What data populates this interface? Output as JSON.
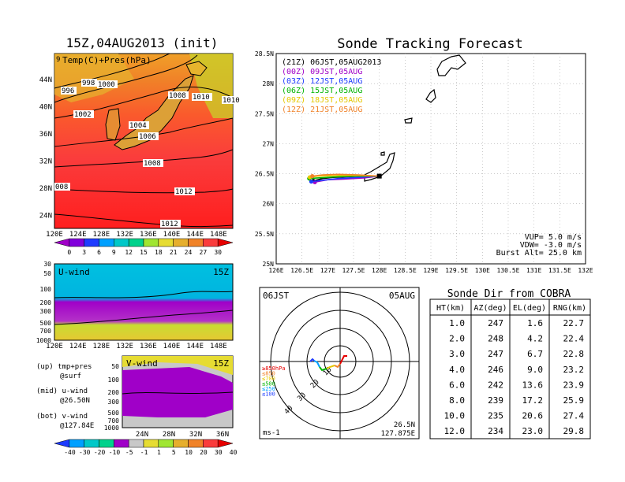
{
  "left": {
    "title": "15Z,04AUG2013 (init)",
    "map_label": "Temp(C)+Pres(hPa)",
    "corner_digit": "9",
    "map_x_ticks": [
      "120E",
      "124E",
      "128E",
      "132E",
      "136E",
      "140E",
      "144E",
      "148E"
    ],
    "map_y_ticks": [
      "44N",
      "40N",
      "36N",
      "32N",
      "28N",
      "24N"
    ],
    "isobars": [
      "996",
      "998",
      "1000",
      "1002",
      "1004",
      "1006",
      "1008",
      "1008",
      "1010",
      "1010",
      "1012",
      "1012",
      "008"
    ],
    "temp_colorbar": [
      "0",
      "3",
      "6",
      "9",
      "12",
      "15",
      "18",
      "21",
      "24",
      "27",
      "30"
    ],
    "temp_colors": [
      "#a000c8",
      "#8200dc",
      "#1e3cff",
      "#00a0ff",
      "#00c8c8",
      "#00d28c",
      "#a0e632",
      "#e6dc32",
      "#e6af2d",
      "#f08228",
      "#fa3c3c",
      "#e60000"
    ],
    "u_panel": {
      "label": "U-wind",
      "time": "15Z",
      "y_ticks": [
        "30",
        "50",
        "100",
        "200",
        "300",
        "500",
        "700",
        "1000"
      ],
      "x_ticks": [
        "120E",
        "124E",
        "128E",
        "132E",
        "136E",
        "140E",
        "144E",
        "148E"
      ]
    },
    "v_panel": {
      "label": "V-wind",
      "time": "15Z",
      "y_ticks": [
        "50",
        "100",
        "200",
        "300",
        "500",
        "700",
        "1000"
      ],
      "x_ticks": [
        "24N",
        "28N",
        "32N",
        "36N"
      ]
    },
    "legend_lines": [
      "(up) tmp+pres",
      "@surf",
      "(mid) u-wind",
      "@26.50N",
      "(bot) v-wind",
      "@127.84E"
    ],
    "wind_colorbar": [
      "-40",
      "-30",
      "-20",
      "-10",
      "-5",
      "-1",
      "1",
      "5",
      "10",
      "20",
      "30",
      "40"
    ],
    "wind_colors": [
      "#1e3cff",
      "#00a0ff",
      "#00c8c8",
      "#00d28c",
      "#a000c8",
      "#c8c8c8",
      "#e6dc32",
      "#a0e632",
      "#e6af2d",
      "#f08228",
      "#fa3c3c",
      "#e60000"
    ]
  },
  "forecast": {
    "title": "Sonde Tracking Forecast",
    "legend": [
      {
        "text": "(21Z)  06JST,05AUG2013",
        "color": "#000000"
      },
      {
        "text": "(00Z)  09JST,05AUG",
        "color": "#a000c8"
      },
      {
        "text": "(03Z)  12JST,05AUG",
        "color": "#1e3cff"
      },
      {
        "text": "(06Z)  15JST,05AUG",
        "color": "#00b400"
      },
      {
        "text": "(09Z)  18JST,05AUG",
        "color": "#e6c800"
      },
      {
        "text": "(12Z)  21JST,05AUG",
        "color": "#f08228"
      }
    ],
    "info": [
      "VUP=  5.0  m/s",
      "VDW= -3.0  m/s",
      "Burst Alt=  25.0  km"
    ],
    "y_ticks": [
      "28.5N",
      "28N",
      "27.5N",
      "27N",
      "26.5N",
      "26N",
      "25.5N",
      "25N"
    ],
    "x_ticks": [
      "126E",
      "126.5E",
      "127E",
      "127.5E",
      "128E",
      "128.5E",
      "129E",
      "129.5E",
      "130E",
      "130.5E",
      "131E",
      "131.5E",
      "132E"
    ]
  },
  "chart_data": {
    "type": "line",
    "title": "Sonde Tracking Forecast",
    "xlabel": "",
    "ylabel": "",
    "xlim": [
      126,
      132
    ],
    "ylim": [
      25,
      28.5
    ],
    "series": [
      {
        "name": "(21Z)  06JST,05AUG2013",
        "color": "#000000",
        "points": [
          [
            128.0,
            26.46
          ],
          [
            127.7,
            26.46
          ],
          [
            127.4,
            26.45
          ],
          [
            127.1,
            26.44
          ],
          [
            126.9,
            26.42
          ],
          [
            126.72,
            26.38
          ]
        ]
      },
      {
        "name": "(00Z)  09JST,05AUG",
        "color": "#a000c8",
        "points": [
          [
            128.0,
            26.46
          ],
          [
            127.7,
            26.43
          ],
          [
            127.3,
            26.41
          ],
          [
            127.0,
            26.4
          ],
          [
            126.75,
            26.36
          ]
        ]
      },
      {
        "name": "(03Z)  12JST,05AUG",
        "color": "#1e3cff",
        "points": [
          [
            128.0,
            26.46
          ],
          [
            127.6,
            26.44
          ],
          [
            127.2,
            26.42
          ],
          [
            126.9,
            26.39
          ],
          [
            126.68,
            26.37
          ]
        ]
      },
      {
        "name": "(06Z)  15JST,05AUG",
        "color": "#00b400",
        "points": [
          [
            128.0,
            26.46
          ],
          [
            127.6,
            26.46
          ],
          [
            127.2,
            26.45
          ],
          [
            126.8,
            26.43
          ],
          [
            126.64,
            26.42
          ]
        ]
      },
      {
        "name": "(09Z)  18JST,05AUG",
        "color": "#e6c800",
        "points": [
          [
            128.0,
            26.46
          ],
          [
            127.6,
            26.47
          ],
          [
            127.2,
            26.47
          ],
          [
            126.8,
            26.46
          ],
          [
            126.65,
            26.44
          ]
        ]
      },
      {
        "name": "(12Z)  21JST,05AUG",
        "color": "#f08228",
        "points": [
          [
            128.0,
            26.46
          ],
          [
            127.6,
            26.48
          ],
          [
            127.2,
            26.49
          ],
          [
            126.9,
            26.48
          ],
          [
            126.7,
            26.46
          ]
        ]
      }
    ]
  },
  "polar": {
    "left_label": "06JST",
    "right_label": "05AUG",
    "ring_labels": [
      "10",
      "20",
      "30",
      "40"
    ],
    "level_labels": [
      "≥850hPa",
      "≤850",
      "≤700",
      "≤500",
      "≤250",
      "≤100"
    ],
    "level_colors": [
      "#e60000",
      "#f08228",
      "#e6c800",
      "#00b400",
      "#00a0ff",
      "#1e3cff"
    ],
    "unit": "ms-1",
    "coord_lat": "26.5N",
    "coord_lon": "127.875E"
  },
  "table": {
    "title": "Sonde Dir from COBRA",
    "headers": [
      "HT(km)",
      "AZ(deg)",
      "EL(deg)",
      "RNG(km)"
    ],
    "rows": [
      [
        "1.0",
        "247",
        "1.6",
        "22.7"
      ],
      [
        "2.0",
        "248",
        "4.2",
        "22.4"
      ],
      [
        "3.0",
        "247",
        "6.7",
        "22.8"
      ],
      [
        "4.0",
        "246",
        "9.0",
        "23.2"
      ],
      [
        "6.0",
        "242",
        "13.6",
        "23.9"
      ],
      [
        "8.0",
        "239",
        "17.2",
        "25.9"
      ],
      [
        "10.0",
        "235",
        "20.6",
        "27.4"
      ],
      [
        "12.0",
        "234",
        "23.0",
        "29.8"
      ]
    ]
  }
}
